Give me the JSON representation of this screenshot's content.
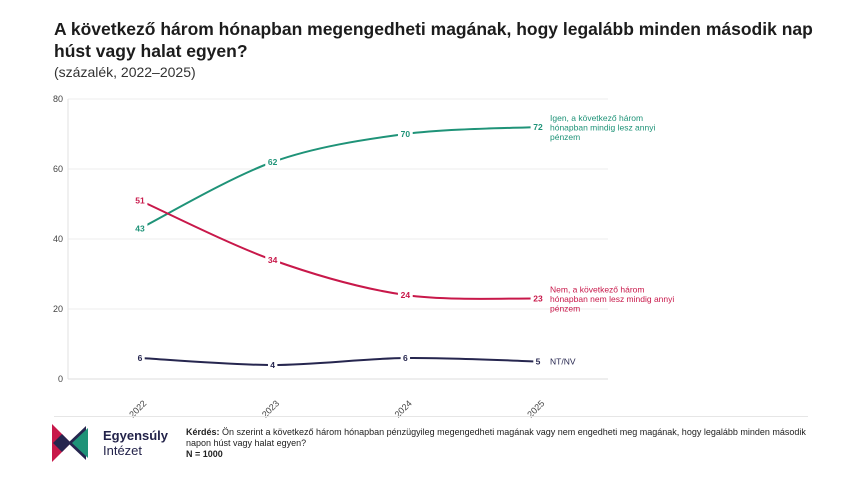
{
  "title": "A következő három hónapban megengedheti magának, hogy legalább minden második nap húst vagy halat egyen?",
  "subtitle": "(százalék, 2022–2025)",
  "chart_data": {
    "type": "line",
    "x": [
      "2022",
      "2023",
      "2024",
      "2025"
    ],
    "ylim": [
      0,
      80
    ],
    "yticks": [
      0,
      20,
      40,
      60,
      80
    ],
    "grid": true,
    "series": [
      {
        "name": "Igen, a következő három hónapban mindig lesz annyi pénzem",
        "label_lines": [
          "Igen, a következő három",
          "hónapban mindig lesz annyi",
          "pénzem"
        ],
        "values": [
          43,
          62,
          70,
          72
        ],
        "color": "#1f9378"
      },
      {
        "name": "Nem, a következő három hónapban nem lesz mindig annyi pénzem",
        "label_lines": [
          "Nem, a következő három",
          "hónapban nem lesz mindig annyi",
          "pénzem"
        ],
        "values": [
          51,
          34,
          24,
          23
        ],
        "color": "#c8184a"
      },
      {
        "name": "NT/NV",
        "label_lines": [
          "NT/NV"
        ],
        "values": [
          6,
          4,
          6,
          5
        ],
        "color": "#26264f"
      }
    ]
  },
  "footer": {
    "brand_line1": "Egyensúly",
    "brand_line2": "Intézet",
    "question_label": "Kérdés:",
    "question_text": " Ön szerint a következő három hónapban pénzügyileg megengedheti magának vagy nem engedheti meg magának, hogy legalább minden második napon húst vagy halat egyen?",
    "n_text": "N = 1000"
  }
}
